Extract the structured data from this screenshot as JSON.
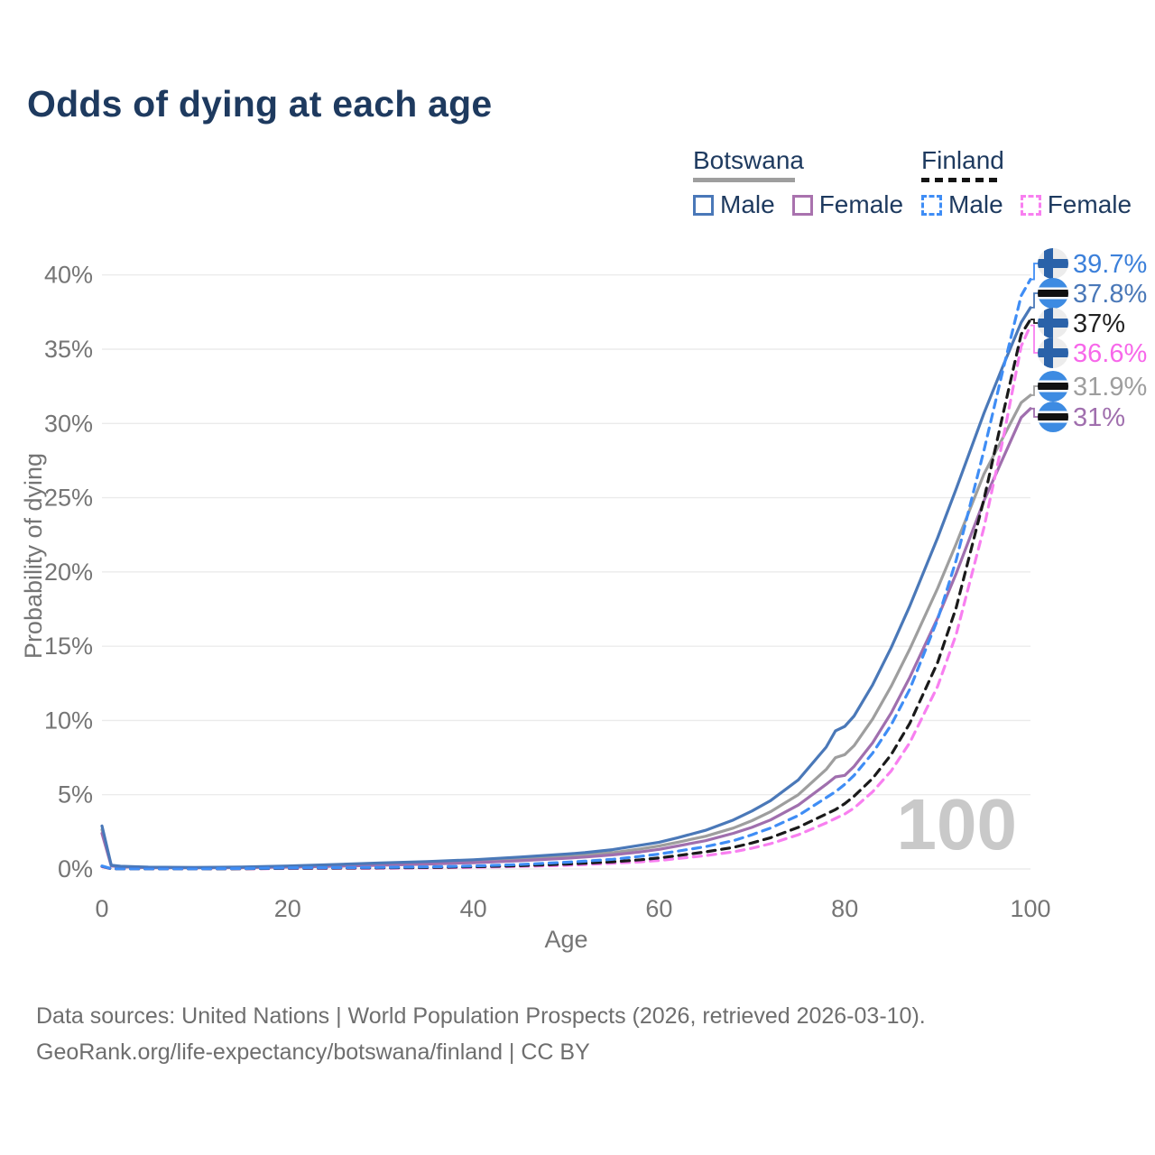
{
  "title": "Odds of dying at each age",
  "legend": {
    "groups": [
      {
        "label": "Botswana",
        "series_style": "solid",
        "underline_color": "#9e9e9e",
        "items": [
          {
            "label": "Male",
            "color": "#4a78b8"
          },
          {
            "label": "Female",
            "color": "#a972ae"
          }
        ]
      },
      {
        "label": "Finland",
        "series_style": "dashed",
        "underline_color": "#141414",
        "items": [
          {
            "label": "Male",
            "color": "#3f8df5"
          },
          {
            "label": "Female",
            "color": "#f87ff0"
          }
        ]
      }
    ]
  },
  "footer": {
    "line1": "Data sources: United Nations | World Population Prospects (2026, retrieved 2026-03-10).",
    "line2": "GeoRank.org/life-expectancy/botswana/finland | CC BY"
  },
  "chart_data": {
    "type": "line",
    "title": "Odds of dying at each age",
    "xlabel": "Age",
    "ylabel": "Probability of dying",
    "xlim": [
      0,
      100
    ],
    "ylim": [
      0,
      40
    ],
    "x_ticks": [
      0,
      20,
      40,
      60,
      80,
      100
    ],
    "y_ticks": [
      0,
      5,
      10,
      15,
      20,
      25,
      30,
      35,
      40
    ],
    "y_tick_suffix": "%",
    "grid": true,
    "legend_position": "top-right",
    "watermark": "100",
    "x": [
      0,
      1,
      2,
      5,
      10,
      15,
      20,
      25,
      30,
      35,
      40,
      45,
      50,
      52,
      55,
      58,
      60,
      62,
      65,
      68,
      70,
      72,
      75,
      78,
      79,
      80,
      81,
      83,
      85,
      87,
      90,
      92,
      95,
      97,
      99,
      100
    ],
    "series": [
      {
        "id": "botswana-total",
        "name": "Botswana (both sexes)",
        "country": "Botswana",
        "sex": "Total",
        "color": "#9e9e9e",
        "dash": "solid",
        "flag": "botswana",
        "end_label": "31.9%",
        "label_color": "#9e9e9e",
        "values": [
          2.65,
          0.22,
          0.16,
          0.1,
          0.09,
          0.11,
          0.16,
          0.24,
          0.32,
          0.41,
          0.5,
          0.66,
          0.85,
          0.93,
          1.1,
          1.35,
          1.55,
          1.8,
          2.2,
          2.75,
          3.25,
          3.85,
          5.0,
          6.7,
          7.5,
          7.7,
          8.3,
          10.1,
          12.3,
          14.8,
          18.9,
          21.9,
          26.6,
          29.0,
          31.4,
          31.9
        ]
      },
      {
        "id": "botswana-female",
        "name": "Botswana Female",
        "country": "Botswana",
        "sex": "Female",
        "color": "#a06fae",
        "dash": "solid",
        "flag": "botswana",
        "end_label": "31%",
        "label_color": "#a06fae",
        "values": [
          2.4,
          0.2,
          0.14,
          0.09,
          0.08,
          0.09,
          0.13,
          0.18,
          0.25,
          0.33,
          0.42,
          0.55,
          0.72,
          0.8,
          0.95,
          1.15,
          1.32,
          1.55,
          1.9,
          2.4,
          2.8,
          3.3,
          4.3,
          5.7,
          6.2,
          6.3,
          6.9,
          8.5,
          10.5,
          12.9,
          16.9,
          19.9,
          24.8,
          27.6,
          30.4,
          31.0
        ]
      },
      {
        "id": "botswana-male",
        "name": "Botswana Male",
        "country": "Botswana",
        "sex": "Male",
        "color": "#4a78b8",
        "dash": "solid",
        "flag": "botswana",
        "end_label": "37.8%",
        "label_color": "#4a78b8",
        "values": [
          2.9,
          0.25,
          0.18,
          0.12,
          0.1,
          0.13,
          0.2,
          0.3,
          0.4,
          0.5,
          0.62,
          0.8,
          1.0,
          1.1,
          1.3,
          1.6,
          1.8,
          2.1,
          2.6,
          3.3,
          3.9,
          4.6,
          6.0,
          8.2,
          9.3,
          9.6,
          10.3,
          12.4,
          14.9,
          17.7,
          22.3,
          25.6,
          30.7,
          33.8,
          36.8,
          37.8
        ]
      },
      {
        "id": "finland-female",
        "name": "Finland Female",
        "country": "Finland",
        "sex": "Female",
        "color": "#f87ff0",
        "dash": "dashed",
        "flag": "finland",
        "end_label": "36.6%",
        "label_color": "#f768ea",
        "values": [
          0.15,
          0.01,
          0.01,
          0.008,
          0.008,
          0.015,
          0.03,
          0.04,
          0.05,
          0.07,
          0.11,
          0.17,
          0.25,
          0.3,
          0.38,
          0.48,
          0.57,
          0.7,
          0.9,
          1.15,
          1.4,
          1.7,
          2.3,
          3.1,
          3.4,
          3.7,
          4.1,
          5.2,
          6.6,
          8.5,
          12.3,
          15.8,
          23.0,
          28.8,
          35.2,
          36.6
        ]
      },
      {
        "id": "finland-total",
        "name": "Finland (both sexes)",
        "country": "Finland",
        "sex": "Total",
        "color": "#1a1a1a",
        "dash": "dashed",
        "flag": "finland",
        "end_label": "37%",
        "label_color": "#222222",
        "values": [
          0.18,
          0.015,
          0.012,
          0.01,
          0.01,
          0.02,
          0.05,
          0.06,
          0.08,
          0.1,
          0.15,
          0.22,
          0.33,
          0.38,
          0.48,
          0.62,
          0.74,
          0.9,
          1.15,
          1.45,
          1.75,
          2.1,
          2.8,
          3.7,
          4.0,
          4.4,
          4.9,
          6.1,
          7.7,
          9.8,
          13.9,
          17.6,
          24.9,
          30.5,
          36.0,
          37.0
        ]
      },
      {
        "id": "finland-male",
        "name": "Finland Male",
        "country": "Finland",
        "sex": "Male",
        "color": "#3f8df5",
        "dash": "dashed",
        "flag": "finland",
        "end_label": "39.7%",
        "label_color": "#3c80da",
        "values": [
          0.2,
          0.02,
          0.015,
          0.01,
          0.01,
          0.03,
          0.07,
          0.09,
          0.11,
          0.14,
          0.2,
          0.3,
          0.45,
          0.52,
          0.65,
          0.85,
          1.0,
          1.2,
          1.5,
          1.9,
          2.3,
          2.75,
          3.6,
          4.8,
          5.2,
          5.7,
          6.3,
          7.8,
          9.7,
          12.1,
          16.8,
          20.8,
          28.2,
          33.5,
          38.6,
          39.7
        ]
      }
    ]
  }
}
